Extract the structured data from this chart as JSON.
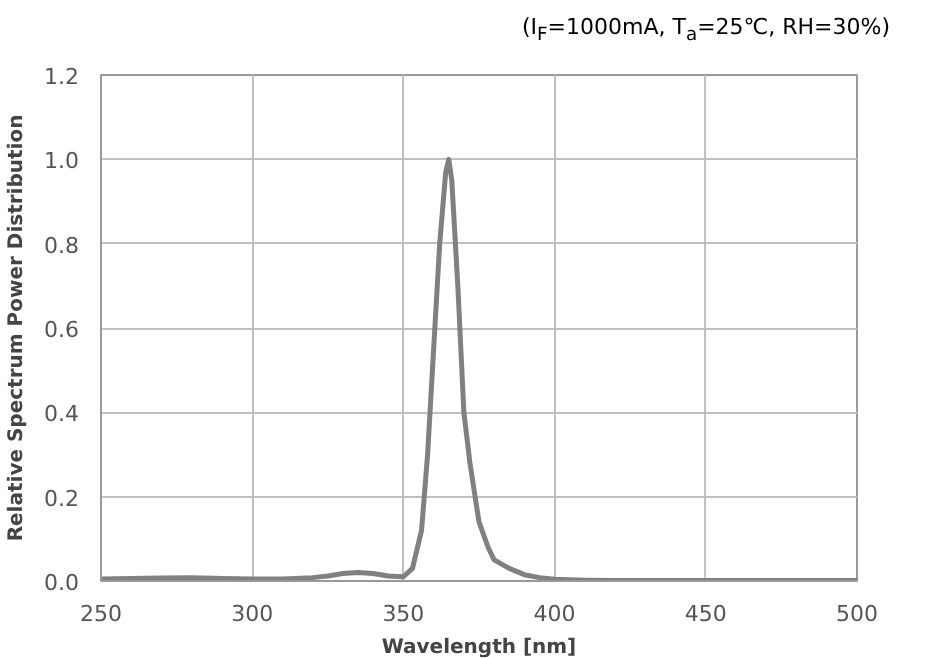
{
  "chart_data": {
    "type": "line",
    "title": "(I$_{F}$=1000mA, T$_{a}$=25℃, RH=30%)",
    "xlabel": "Wavelength [nm]",
    "ylabel": "Relative Spectrum Power Distribution",
    "x": [
      250,
      260,
      270,
      280,
      290,
      300,
      310,
      320,
      325,
      330,
      335,
      340,
      345,
      350,
      353,
      356,
      358,
      360,
      362,
      364,
      365,
      366,
      368,
      370,
      372,
      375,
      378,
      380,
      385,
      390,
      395,
      400,
      410,
      420,
      450,
      500
    ],
    "series": [
      {
        "color": "#808080",
        "values": [
          0.005,
          0.006,
          0.007,
          0.008,
          0.006,
          0.005,
          0.005,
          0.008,
          0.012,
          0.018,
          0.02,
          0.018,
          0.012,
          0.01,
          0.03,
          0.12,
          0.3,
          0.55,
          0.8,
          0.97,
          1.0,
          0.95,
          0.7,
          0.4,
          0.28,
          0.14,
          0.08,
          0.05,
          0.03,
          0.015,
          0.008,
          0.004,
          0.002,
          0.001,
          0.001,
          0.001
        ]
      }
    ],
    "xlim": [
      250,
      500
    ],
    "ylim": [
      0,
      1.2
    ],
    "xticks": [
      250,
      300,
      350,
      400,
      450,
      500
    ],
    "yticks": [
      {
        "value": 0,
        "label": "0.0"
      },
      0.2,
      0.4,
      0.6,
      0.8,
      {
        "value": 1,
        "label": "1.0"
      },
      1.2
    ],
    "grid": true,
    "line_style": "solid",
    "marker": "none"
  }
}
